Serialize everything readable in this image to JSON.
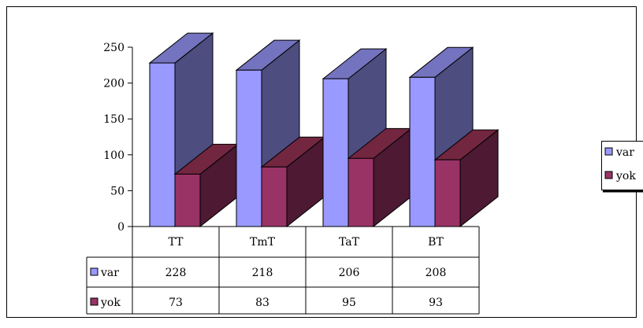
{
  "chart_data": {
    "type": "bar",
    "categories": [
      "TT",
      "TmT",
      "TaT",
      "BT"
    ],
    "series": [
      {
        "name": "var",
        "values": [
          228,
          218,
          206,
          208
        ]
      },
      {
        "name": "yok",
        "values": [
          73,
          83,
          95,
          93
        ]
      }
    ],
    "ylim": [
      0,
      250
    ],
    "yticks": [
      0,
      50,
      100,
      150,
      200,
      250
    ],
    "legend": "right",
    "grid": false,
    "data_table": true,
    "colors": {
      "var": {
        "front": "#9999ff",
        "side": "#4d4d80",
        "top": "#7373bf"
      },
      "yok": {
        "front": "#993366",
        "side": "#4d1933",
        "top": "#732640"
      }
    }
  }
}
